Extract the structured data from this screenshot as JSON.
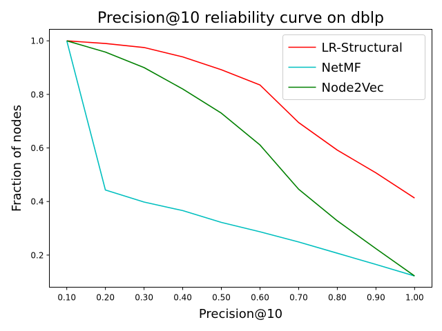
{
  "chart_data": {
    "type": "line",
    "title": "Precision@10 reliability curve on dblp",
    "xlabel": "Precision@10",
    "ylabel": "Fraction of nodes",
    "x": [
      0.1,
      0.2,
      0.3,
      0.4,
      0.5,
      0.6,
      0.7,
      0.8,
      0.9,
      1.0
    ],
    "xticks": [
      "0.10",
      "0.20",
      "0.30",
      "0.40",
      "0.50",
      "0.60",
      "0.70",
      "0.80",
      "0.90",
      "1.00"
    ],
    "yticks": [
      "0.2",
      "0.4",
      "0.6",
      "0.8",
      "1.0"
    ],
    "xlim": [
      0.055,
      1.045
    ],
    "ylim": [
      0.08,
      1.043
    ],
    "legend_position": "top-right",
    "series": [
      {
        "name": "LR-Structural",
        "color": "#ff0000",
        "values": [
          1.0,
          0.99,
          0.975,
          0.94,
          0.892,
          0.835,
          0.695,
          0.592,
          0.507,
          0.413
        ]
      },
      {
        "name": "NetMF",
        "color": "#00bfbf",
        "values": [
          1.0,
          0.443,
          0.398,
          0.366,
          0.322,
          0.287,
          0.249,
          0.207,
          0.165,
          0.122
        ]
      },
      {
        "name": "Node2Vec",
        "color": "#008000",
        "values": [
          1.0,
          0.958,
          0.9,
          0.82,
          0.73,
          0.611,
          0.446,
          0.328,
          0.224,
          0.122
        ]
      }
    ]
  }
}
